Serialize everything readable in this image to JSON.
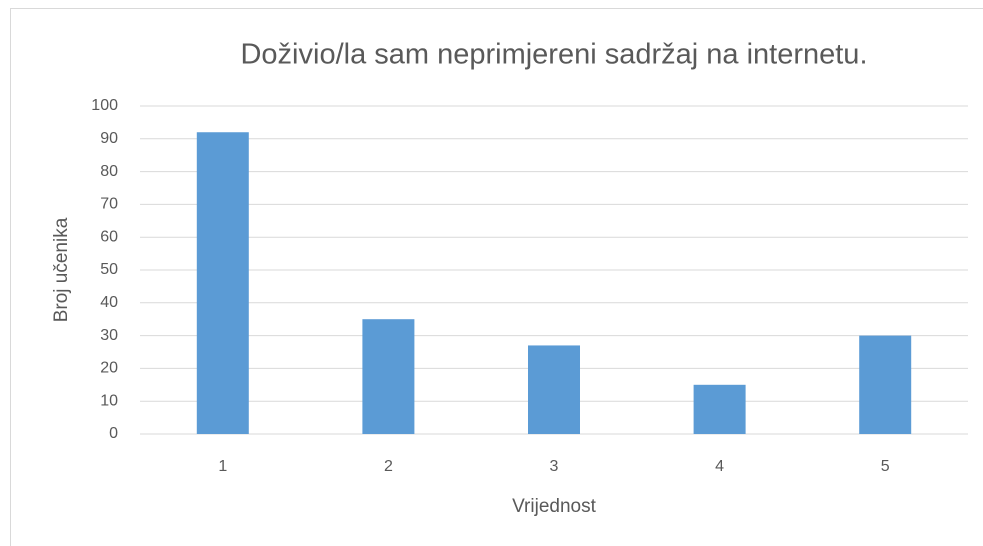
{
  "chart_data": {
    "type": "bar",
    "title": "Doživio/la sam neprimjereni sadržaj na internetu.",
    "x_label": "Vrijednost",
    "y_label": "Broj učenika",
    "categories": [
      "1",
      "2",
      "3",
      "4",
      "5"
    ],
    "values": [
      92,
      35,
      27,
      15,
      30
    ],
    "color": "#5b9bd5",
    "ylim": [
      0,
      100
    ],
    "yticks": [
      0,
      10,
      20,
      30,
      40,
      50,
      60,
      70,
      80,
      90,
      100
    ],
    "grid": true
  }
}
